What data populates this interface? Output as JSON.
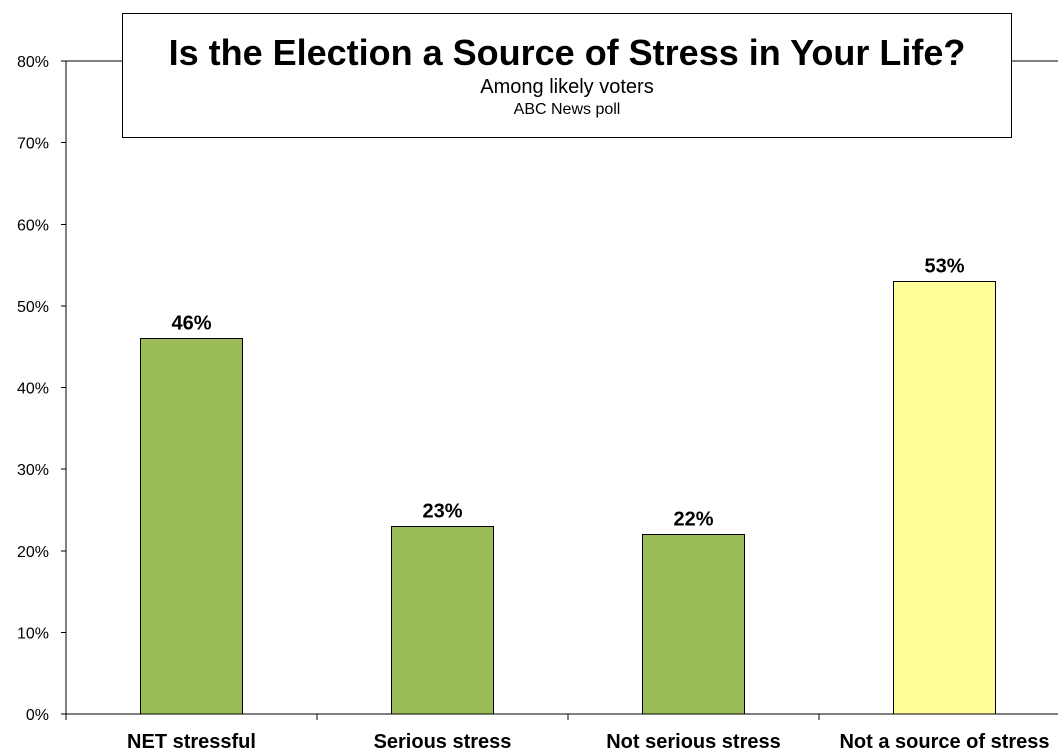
{
  "chart_data": {
    "type": "bar",
    "title": "Is the Election a Source of Stress in Your Life?",
    "subtitle": "Among likely voters",
    "source": "ABC News poll",
    "categories": [
      "NET stressful",
      "Serious stress",
      "Not serious stress",
      "Not a source of stress"
    ],
    "values": [
      46,
      23,
      22,
      53
    ],
    "data_labels": [
      "46%",
      "23%",
      "22%",
      "53%"
    ],
    "bar_colors": [
      "#9bbb59",
      "#9bbb59",
      "#9bbb59",
      "#ffff99"
    ],
    "bar_border_color": "#000000",
    "ylim": [
      0,
      80
    ],
    "yticks": [
      0,
      10,
      20,
      30,
      40,
      50,
      60,
      70,
      80
    ],
    "ytick_labels": [
      "0%",
      "10%",
      "20%",
      "30%",
      "40%",
      "50%",
      "60%",
      "70%",
      "80%"
    ],
    "xlabel": "",
    "ylabel": "",
    "grid": false,
    "legend": "none"
  }
}
